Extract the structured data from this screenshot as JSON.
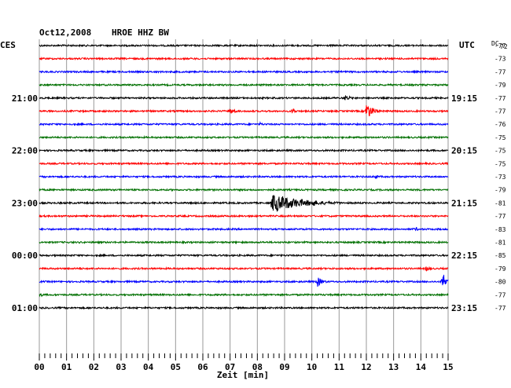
{
  "header": {
    "date": "Oct12,2008",
    "station": "HROE HHZ BW",
    "left_label": "CES",
    "right_label": "UTC",
    "dc_label": "DC",
    "dc_value": "72",
    "xlabel": "Zeit [min]"
  },
  "chart_data": {
    "type": "line",
    "title": "Oct12,2008  HROE HHZ BW",
    "xlabel": "Zeit [min]",
    "xlim": [
      0,
      15
    ],
    "x_ticks": [
      "00",
      "01",
      "02",
      "03",
      "04",
      "05",
      "06",
      "07",
      "08",
      "09",
      "10",
      "11",
      "12",
      "13",
      "14",
      "15"
    ],
    "trace_colors": [
      "#000000",
      "#ff0000",
      "#0000ff",
      "#007000"
    ],
    "left_time_labels": [
      {
        "trace": 4,
        "label": "21:00"
      },
      {
        "trace": 8,
        "label": "22:00"
      },
      {
        "trace": 12,
        "label": "23:00"
      },
      {
        "trace": 16,
        "label": "00:00"
      },
      {
        "trace": 20,
        "label": "01:00"
      }
    ],
    "right_time_labels": [
      {
        "trace": 4,
        "label": "19:15"
      },
      {
        "trace": 8,
        "label": "20:15"
      },
      {
        "trace": 12,
        "label": "21:15"
      },
      {
        "trace": 16,
        "label": "22:15"
      },
      {
        "trace": 20,
        "label": "23:15"
      }
    ],
    "dc_offsets": [
      "-77",
      "-73",
      "-77",
      "-79",
      "-77",
      "-77",
      "-76",
      "-75",
      "-75",
      "-75",
      "-73",
      "-79",
      "-81",
      "-77",
      "-83",
      "-81",
      "-85",
      "-79",
      "-80",
      "-77",
      "-77"
    ],
    "events": [
      {
        "trace": 4,
        "minute": 11.2,
        "amp": 4,
        "dur": 0.8
      },
      {
        "trace": 5,
        "minute": 7.0,
        "amp": 4,
        "dur": 0.8
      },
      {
        "trace": 5,
        "minute": 9.3,
        "amp": 5,
        "dur": 0.3
      },
      {
        "trace": 5,
        "minute": 12.0,
        "amp": 11,
        "dur": 0.8
      },
      {
        "trace": 6,
        "minute": 8.1,
        "amp": 3,
        "dur": 0.3
      },
      {
        "trace": 8,
        "minute": 5.5,
        "amp": 2,
        "dur": 0.3
      },
      {
        "trace": 10,
        "minute": 12.3,
        "amp": 3,
        "dur": 0.6
      },
      {
        "trace": 12,
        "minute": 8.55,
        "amp": 12,
        "dur": 3.5
      },
      {
        "trace": 12,
        "minute": 10.0,
        "amp": 5,
        "dur": 1.0
      },
      {
        "trace": 14,
        "minute": 13.8,
        "amp": 3,
        "dur": 0.4
      },
      {
        "trace": 17,
        "minute": 1.5,
        "amp": 2,
        "dur": 0.4
      },
      {
        "trace": 17,
        "minute": 14.2,
        "amp": 4,
        "dur": 0.5
      },
      {
        "trace": 18,
        "minute": 10.2,
        "amp": 7,
        "dur": 0.6
      },
      {
        "trace": 18,
        "minute": 14.8,
        "amp": 12,
        "dur": 0.6
      },
      {
        "trace": 19,
        "minute": 0.05,
        "amp": 3,
        "dur": 0.3
      },
      {
        "trace": 21,
        "minute": 5.8,
        "amp": 5,
        "dur": 0.4
      }
    ]
  }
}
